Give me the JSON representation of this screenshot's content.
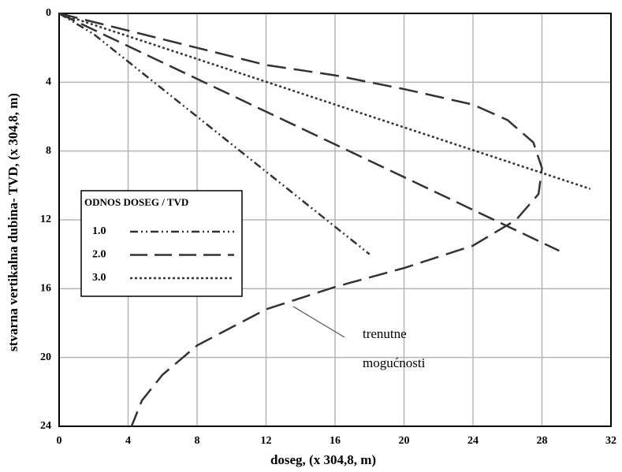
{
  "chart_data": {
    "type": "line",
    "x_label": "doseg, (x 304,8, m)",
    "y_label": "stvarna vertikalna dubina- TVD, (x 304,8, m)",
    "xlim": [
      0,
      32
    ],
    "ylim": [
      0,
      24
    ],
    "y_inverted": true,
    "xticks": [
      0,
      4,
      8,
      12,
      16,
      20,
      24,
      28,
      32
    ],
    "yticks": [
      0,
      4,
      8,
      12,
      16,
      20,
      24
    ],
    "grid": true,
    "legend_title": "ODNOS DOSEG / TVD",
    "legend_position": "center-left",
    "series": [
      {
        "name": "1.0",
        "color": "#333333",
        "dash": "10,4,2,4,2,4",
        "x": [
          0,
          2,
          18
        ],
        "values": [
          0,
          1.2,
          14
        ]
      },
      {
        "name": "2.0",
        "color": "#333333",
        "dash": "22,9",
        "x": [
          0,
          29
        ],
        "values": [
          0,
          13.8
        ]
      },
      {
        "name": "3.0",
        "color": "#333333",
        "dash": "3,3",
        "x": [
          0,
          30.8
        ],
        "values": [
          0,
          10.2
        ]
      }
    ],
    "curve": {
      "color": "#333333",
      "dash": "24,10",
      "x": [
        0,
        4,
        8,
        12,
        16,
        20,
        24,
        26,
        27.5,
        28,
        27.8,
        26.5,
        24,
        20,
        16,
        12,
        8,
        6,
        4.8,
        4.2
      ],
      "values": [
        0,
        1,
        2,
        3,
        3.6,
        4.4,
        5.3,
        6.2,
        7.5,
        9,
        10.5,
        12,
        13.5,
        14.8,
        15.9,
        17.2,
        19.3,
        21,
        22.5,
        24
      ],
      "label": [
        "trenutne",
        "mogućnosti"
      ]
    }
  }
}
